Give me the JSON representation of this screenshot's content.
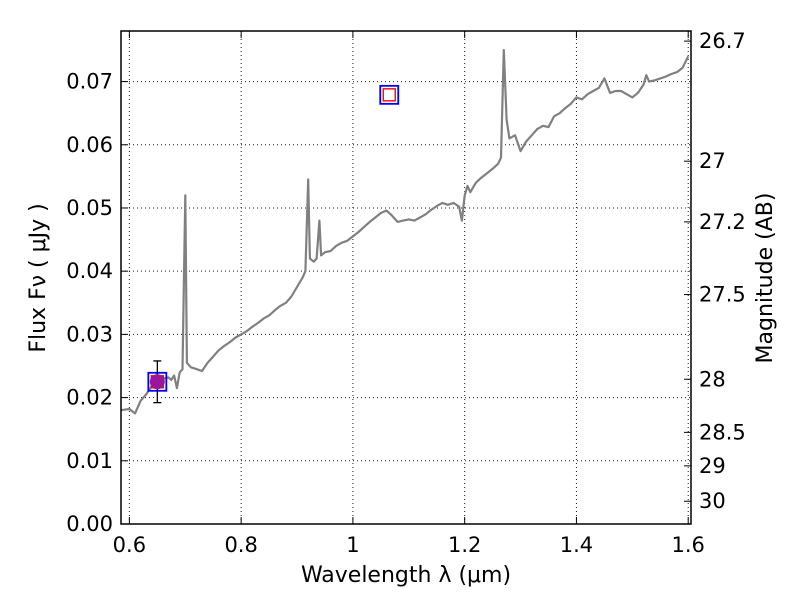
{
  "chart_data": {
    "type": "line",
    "xlabel": "Wavelength  λ (μm)",
    "ylabel": "Flux  Fν  ( μJy )",
    "ylabel_right": "Magnitude (AB)",
    "xlim": [
      0.585,
      1.605
    ],
    "ylim": [
      0.0,
      0.078
    ],
    "grid": true,
    "x_ticks": [
      {
        "value": 0.6,
        "label": "0.6"
      },
      {
        "value": 0.8,
        "label": "0.8"
      },
      {
        "value": 1.0,
        "label": "1"
      },
      {
        "value": 1.2,
        "label": "1.2"
      },
      {
        "value": 1.4,
        "label": "1.4"
      },
      {
        "value": 1.6,
        "label": "1.6"
      }
    ],
    "y_ticks": [
      {
        "value": 0.0,
        "label": "0.00"
      },
      {
        "value": 0.01,
        "label": "0.01"
      },
      {
        "value": 0.02,
        "label": "0.02"
      },
      {
        "value": 0.03,
        "label": "0.03"
      },
      {
        "value": 0.04,
        "label": "0.04"
      },
      {
        "value": 0.05,
        "label": "0.05"
      },
      {
        "value": 0.06,
        "label": "0.06"
      },
      {
        "value": 0.07,
        "label": "0.07"
      }
    ],
    "right_ticks": [
      {
        "flux": 0.0764,
        "label": "26.7"
      },
      {
        "flux": 0.0574,
        "label": "27"
      },
      {
        "flux": 0.0478,
        "label": "27.2"
      },
      {
        "flux": 0.0363,
        "label": "27.5"
      },
      {
        "flux": 0.0229,
        "label": "28"
      },
      {
        "flux": 0.0145,
        "label": "28.5"
      },
      {
        "flux": 0.0092,
        "label": "29"
      },
      {
        "flux": 0.0036,
        "label": "30"
      }
    ],
    "series": [
      {
        "color": "#808080",
        "points": [
          [
            0.585,
            0.018
          ],
          [
            0.6,
            0.0182
          ],
          [
            0.61,
            0.0175
          ],
          [
            0.62,
            0.0195
          ],
          [
            0.63,
            0.0205
          ],
          [
            0.64,
            0.0218
          ],
          [
            0.65,
            0.0225
          ],
          [
            0.66,
            0.023
          ],
          [
            0.67,
            0.0232
          ],
          [
            0.675,
            0.0228
          ],
          [
            0.68,
            0.0235
          ],
          [
            0.685,
            0.0215
          ],
          [
            0.69,
            0.024
          ],
          [
            0.695,
            0.0245
          ],
          [
            0.7,
            0.052
          ],
          [
            0.703,
            0.0255
          ],
          [
            0.71,
            0.0248
          ],
          [
            0.72,
            0.0245
          ],
          [
            0.73,
            0.0242
          ],
          [
            0.74,
            0.0255
          ],
          [
            0.75,
            0.0265
          ],
          [
            0.76,
            0.0275
          ],
          [
            0.77,
            0.0282
          ],
          [
            0.78,
            0.0288
          ],
          [
            0.79,
            0.0295
          ],
          [
            0.8,
            0.03
          ],
          [
            0.81,
            0.0305
          ],
          [
            0.82,
            0.0312
          ],
          [
            0.83,
            0.0318
          ],
          [
            0.84,
            0.0325
          ],
          [
            0.85,
            0.033
          ],
          [
            0.86,
            0.0338
          ],
          [
            0.87,
            0.0345
          ],
          [
            0.88,
            0.035
          ],
          [
            0.89,
            0.036
          ],
          [
            0.9,
            0.0375
          ],
          [
            0.91,
            0.039
          ],
          [
            0.915,
            0.04
          ],
          [
            0.92,
            0.0545
          ],
          [
            0.923,
            0.042
          ],
          [
            0.93,
            0.0415
          ],
          [
            0.935,
            0.042
          ],
          [
            0.94,
            0.048
          ],
          [
            0.943,
            0.0425
          ],
          [
            0.95,
            0.043
          ],
          [
            0.96,
            0.0432
          ],
          [
            0.97,
            0.044
          ],
          [
            0.98,
            0.0445
          ],
          [
            0.99,
            0.0448
          ],
          [
            1.0,
            0.0455
          ],
          [
            1.01,
            0.0462
          ],
          [
            1.02,
            0.047
          ],
          [
            1.03,
            0.0478
          ],
          [
            1.04,
            0.0485
          ],
          [
            1.05,
            0.0492
          ],
          [
            1.06,
            0.0496
          ],
          [
            1.07,
            0.0488
          ],
          [
            1.08,
            0.0478
          ],
          [
            1.09,
            0.048
          ],
          [
            1.1,
            0.0482
          ],
          [
            1.11,
            0.048
          ],
          [
            1.12,
            0.0485
          ],
          [
            1.13,
            0.049
          ],
          [
            1.14,
            0.0497
          ],
          [
            1.15,
            0.0503
          ],
          [
            1.16,
            0.0508
          ],
          [
            1.17,
            0.0505
          ],
          [
            1.18,
            0.0508
          ],
          [
            1.19,
            0.0502
          ],
          [
            1.195,
            0.048
          ],
          [
            1.2,
            0.052
          ],
          [
            1.205,
            0.0535
          ],
          [
            1.21,
            0.0525
          ],
          [
            1.22,
            0.054
          ],
          [
            1.23,
            0.0548
          ],
          [
            1.24,
            0.0555
          ],
          [
            1.25,
            0.0562
          ],
          [
            1.26,
            0.057
          ],
          [
            1.265,
            0.058
          ],
          [
            1.27,
            0.075
          ],
          [
            1.275,
            0.064
          ],
          [
            1.28,
            0.061
          ],
          [
            1.29,
            0.0615
          ],
          [
            1.3,
            0.059
          ],
          [
            1.31,
            0.0605
          ],
          [
            1.32,
            0.0615
          ],
          [
            1.33,
            0.0625
          ],
          [
            1.34,
            0.063
          ],
          [
            1.35,
            0.0628
          ],
          [
            1.36,
            0.0645
          ],
          [
            1.37,
            0.065
          ],
          [
            1.38,
            0.0658
          ],
          [
            1.39,
            0.0665
          ],
          [
            1.4,
            0.0675
          ],
          [
            1.41,
            0.0672
          ],
          [
            1.42,
            0.068
          ],
          [
            1.43,
            0.0685
          ],
          [
            1.44,
            0.069
          ],
          [
            1.45,
            0.0705
          ],
          [
            1.46,
            0.0682
          ],
          [
            1.47,
            0.0685
          ],
          [
            1.48,
            0.0685
          ],
          [
            1.49,
            0.068
          ],
          [
            1.5,
            0.0675
          ],
          [
            1.51,
            0.0682
          ],
          [
            1.52,
            0.0695
          ],
          [
            1.525,
            0.071
          ],
          [
            1.53,
            0.07
          ],
          [
            1.54,
            0.0702
          ],
          [
            1.55,
            0.0705
          ],
          [
            1.56,
            0.0708
          ],
          [
            1.57,
            0.0712
          ],
          [
            1.58,
            0.0715
          ],
          [
            1.59,
            0.0722
          ],
          [
            1.6,
            0.074
          ]
        ]
      }
    ],
    "photometry_points": [
      {
        "x": 0.65,
        "y": 0.0225,
        "yerr": 0.0033,
        "marker": "circle",
        "color": "#9b169b",
        "box_color": "#0000ff"
      }
    ],
    "model_points": [
      {
        "x": 1.065,
        "y": 0.0679,
        "edge_color": "#0000ff",
        "inner_color": "#ff0000"
      },
      {
        "x": 0.65,
        "y": 0.0225,
        "edge_color": "#0000ff",
        "inner_color": "#ff0000"
      }
    ]
  }
}
